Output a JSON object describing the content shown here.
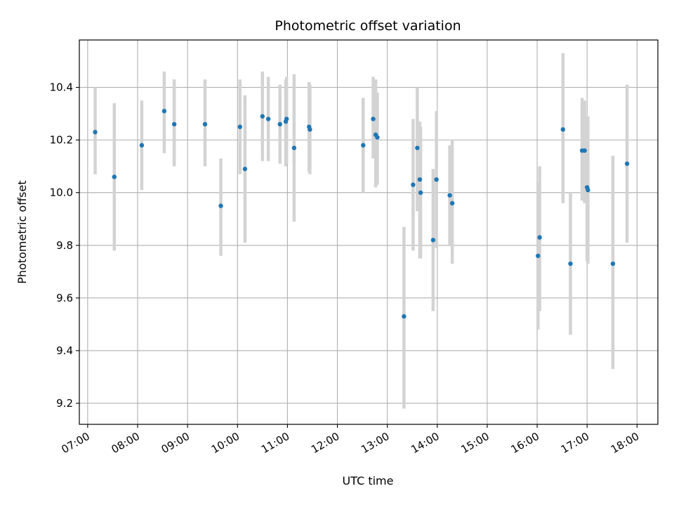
{
  "chart_data": {
    "type": "scatter",
    "title": "Photometric offset variation",
    "xlabel": "UTC time",
    "ylabel": "Photometric offset",
    "x_unit": "UTC hours",
    "xlim": [
      "06:50",
      "18:25"
    ],
    "ylim": [
      9.12,
      10.58
    ],
    "x_ticks": [
      "07:00",
      "08:00",
      "09:00",
      "10:00",
      "11:00",
      "12:00",
      "13:00",
      "14:00",
      "15:00",
      "16:00",
      "17:00",
      "18:00"
    ],
    "y_ticks": [
      9.2,
      9.4,
      9.6,
      9.8,
      10.0,
      10.2,
      10.4
    ],
    "y_tick_labels": [
      "9.2",
      "9.4",
      "9.6",
      "9.8",
      "10.0",
      "10.2",
      "10.4"
    ],
    "grid": true,
    "colors": {
      "point": "#1f77b4",
      "errorbar": "#d3d3d3",
      "grid": "#b0b0b0"
    },
    "points": [
      {
        "x": "07:09",
        "y": 10.23,
        "lo": 10.07,
        "hi": 10.4
      },
      {
        "x": "07:32",
        "y": 10.06,
        "lo": 9.78,
        "hi": 10.34
      },
      {
        "x": "08:05",
        "y": 10.18,
        "lo": 10.01,
        "hi": 10.35
      },
      {
        "x": "08:32",
        "y": 10.31,
        "lo": 10.15,
        "hi": 10.46
      },
      {
        "x": "08:44",
        "y": 10.26,
        "lo": 10.1,
        "hi": 10.43
      },
      {
        "x": "09:21",
        "y": 10.26,
        "lo": 10.1,
        "hi": 10.43
      },
      {
        "x": "09:40",
        "y": 9.95,
        "lo": 9.76,
        "hi": 10.13
      },
      {
        "x": "10:03",
        "y": 10.25,
        "lo": 10.07,
        "hi": 10.43
      },
      {
        "x": "10:09",
        "y": 10.09,
        "lo": 9.81,
        "hi": 10.37
      },
      {
        "x": "10:30",
        "y": 10.29,
        "lo": 10.12,
        "hi": 10.46
      },
      {
        "x": "10:37",
        "y": 10.28,
        "lo": 10.12,
        "hi": 10.44
      },
      {
        "x": "10:51",
        "y": 10.26,
        "lo": 10.11,
        "hi": 10.41
      },
      {
        "x": "10:58",
        "y": 10.27,
        "lo": 10.1,
        "hi": 10.43
      },
      {
        "x": "10:59",
        "y": 10.28,
        "lo": 10.11,
        "hi": 10.44
      },
      {
        "x": "11:08",
        "y": 10.17,
        "lo": 9.89,
        "hi": 10.45
      },
      {
        "x": "11:26",
        "y": 10.25,
        "lo": 10.08,
        "hi": 10.42
      },
      {
        "x": "11:27",
        "y": 10.24,
        "lo": 10.07,
        "hi": 10.41
      },
      {
        "x": "12:31",
        "y": 10.18,
        "lo": 10.0,
        "hi": 10.36
      },
      {
        "x": "12:43",
        "y": 10.28,
        "lo": 10.13,
        "hi": 10.44
      },
      {
        "x": "12:46",
        "y": 10.22,
        "lo": 10.02,
        "hi": 10.43
      },
      {
        "x": "12:48",
        "y": 10.21,
        "lo": 10.03,
        "hi": 10.38
      },
      {
        "x": "13:20",
        "y": 9.53,
        "lo": 9.18,
        "hi": 9.87
      },
      {
        "x": "13:31",
        "y": 10.03,
        "lo": 9.78,
        "hi": 10.28
      },
      {
        "x": "13:36",
        "y": 10.17,
        "lo": 9.93,
        "hi": 10.4
      },
      {
        "x": "13:39",
        "y": 10.05,
        "lo": 9.75,
        "hi": 10.27
      },
      {
        "x": "13:40",
        "y": 10.0,
        "lo": 9.75,
        "hi": 10.25
      },
      {
        "x": "13:55",
        "y": 9.82,
        "lo": 9.55,
        "hi": 10.09
      },
      {
        "x": "13:59",
        "y": 10.05,
        "lo": 9.79,
        "hi": 10.31
      },
      {
        "x": "14:15",
        "y": 9.99,
        "lo": 9.8,
        "hi": 10.18
      },
      {
        "x": "14:18",
        "y": 9.96,
        "lo": 9.73,
        "hi": 10.2
      },
      {
        "x": "16:01",
        "y": 9.76,
        "lo": 9.48,
        "hi": 10.04
      },
      {
        "x": "16:03",
        "y": 9.83,
        "lo": 9.55,
        "hi": 10.1
      },
      {
        "x": "16:31",
        "y": 10.24,
        "lo": 9.96,
        "hi": 10.53
      },
      {
        "x": "16:40",
        "y": 9.73,
        "lo": 9.46,
        "hi": 10.0
      },
      {
        "x": "16:54",
        "y": 10.16,
        "lo": 9.97,
        "hi": 10.36
      },
      {
        "x": "16:57",
        "y": 10.16,
        "lo": 9.96,
        "hi": 10.35
      },
      {
        "x": "17:00",
        "y": 10.02,
        "lo": 9.74,
        "hi": 10.29
      },
      {
        "x": "17:01",
        "y": 10.01,
        "lo": 9.73,
        "hi": 10.29
      },
      {
        "x": "17:31",
        "y": 9.73,
        "lo": 9.33,
        "hi": 10.14
      },
      {
        "x": "17:48",
        "y": 10.11,
        "lo": 9.81,
        "hi": 10.41
      }
    ]
  }
}
